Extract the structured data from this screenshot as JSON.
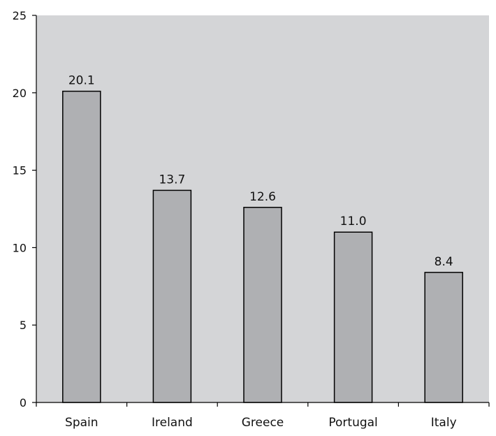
{
  "chart_data": {
    "type": "bar",
    "categories": [
      "Spain",
      "Ireland",
      "Greece",
      "Portugal",
      "Italy"
    ],
    "values": [
      20.1,
      13.7,
      12.6,
      11.0,
      8.4
    ],
    "value_labels": [
      "20.1",
      "13.7",
      "12.6",
      "11.0",
      "8.4"
    ],
    "y_ticks": [
      0,
      5,
      10,
      15,
      20,
      25
    ],
    "ylim": [
      0,
      25
    ],
    "grid": false,
    "legend": "none",
    "colors": {
      "plot_background": "#d4d5d7",
      "bar_fill": "#afb0b3",
      "bar_stroke": "#000000",
      "axis": "#000000"
    }
  }
}
